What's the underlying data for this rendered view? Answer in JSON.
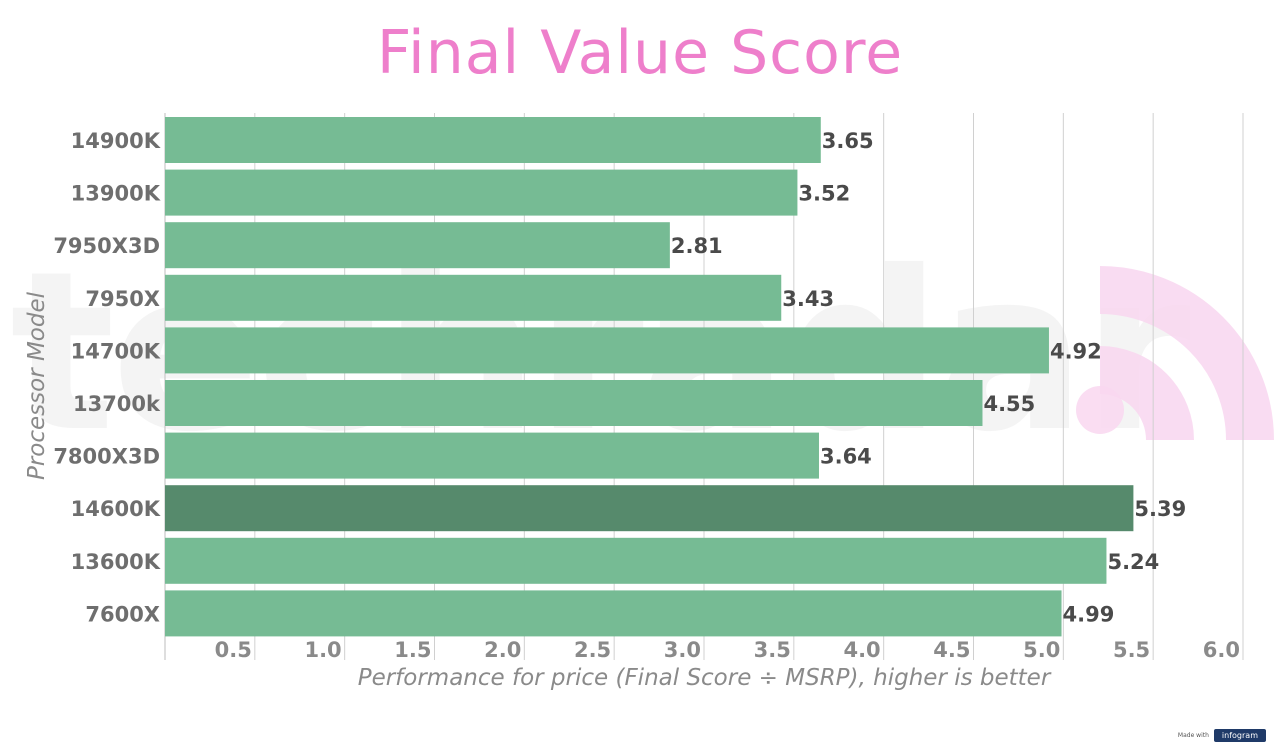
{
  "chart_data": {
    "type": "bar",
    "orientation": "horizontal",
    "title": "Final Value Score",
    "xlabel": "Performance for price (Final Score ÷ MSRP), higher is better",
    "ylabel": "Processor Model",
    "categories": [
      "14900K",
      "13900K",
      "7950X3D",
      "7950X",
      "14700K",
      "13700k",
      "7800X3D",
      "14600K",
      "13600K",
      "7600X"
    ],
    "values": [
      3.65,
      3.52,
      2.81,
      3.43,
      4.92,
      4.55,
      3.64,
      5.39,
      5.24,
      4.99
    ],
    "value_labels": [
      "3.65",
      "3.52",
      "2.81",
      "3.43",
      "4.92",
      "4.55",
      "3.64",
      "5.39",
      "5.24",
      "4.99"
    ],
    "xlim": [
      0,
      6.0
    ],
    "x_ticks": [
      "0.5",
      "1.0",
      "1.5",
      "2.0",
      "2.5",
      "3.0",
      "3.5",
      "4.0",
      "4.5",
      "5.0",
      "5.5",
      "6.0"
    ],
    "grid": "vertical",
    "highlight_category": "14600K",
    "colors": {
      "bar": "#76bb94",
      "highlight": "#568a6c",
      "title": "#ee7fcb",
      "grid": "#d0d0d0"
    }
  },
  "footer": {
    "made_with": "Made with",
    "brand": "infogram"
  }
}
